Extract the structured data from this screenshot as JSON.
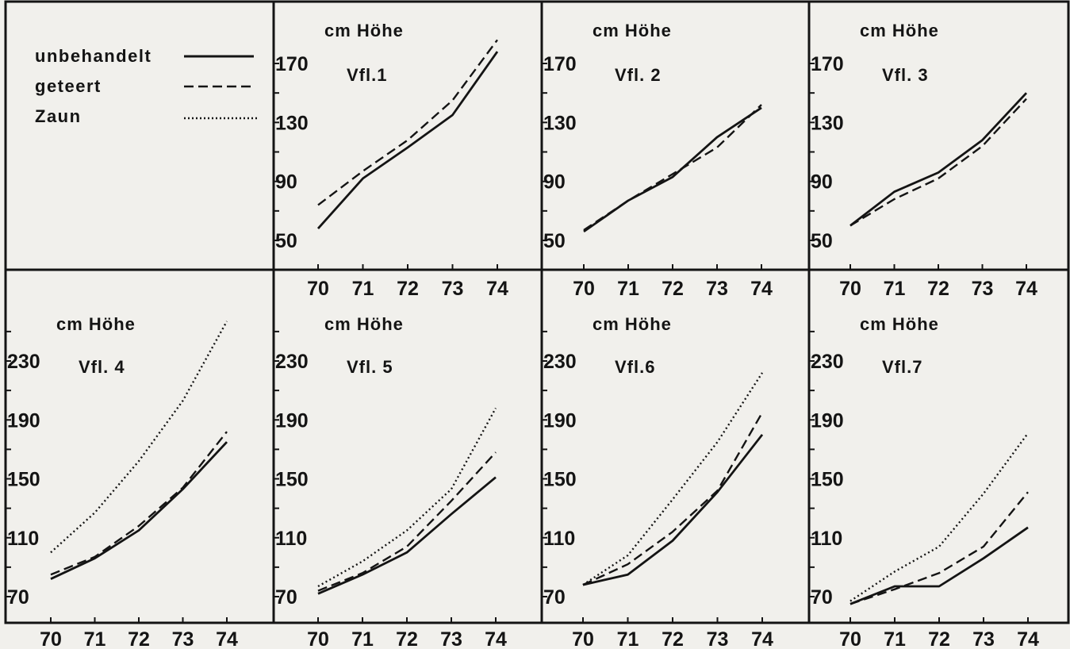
{
  "legend": {
    "entries": [
      {
        "label": "unbehandelt",
        "style": "solid"
      },
      {
        "label": "geteert",
        "style": "dashed"
      },
      {
        "label": "Zaun",
        "style": "dotted"
      }
    ]
  },
  "colors": {
    "ink": "#141414",
    "paper": "#f1f0ec"
  },
  "chart_data": [
    {
      "type": "line",
      "title": "Vfl.1",
      "ylabel": "cm Höhe",
      "categories": [
        "70",
        "71",
        "72",
        "73",
        "74"
      ],
      "ylim": [
        30,
        188
      ],
      "yticks": [
        50,
        90,
        130,
        170
      ],
      "series": [
        {
          "name": "unbehandelt",
          "style": "solid",
          "values": [
            58,
            92,
            113,
            135,
            178
          ]
        },
        {
          "name": "geteert",
          "style": "dashed",
          "values": [
            74,
            97,
            118,
            145,
            186
          ]
        }
      ]
    },
    {
      "type": "line",
      "title": "Vfl. 2",
      "ylabel": "cm Höhe",
      "categories": [
        "70",
        "71",
        "72",
        "73",
        "74"
      ],
      "ylim": [
        30,
        188
      ],
      "yticks": [
        50,
        90,
        130,
        170
      ],
      "series": [
        {
          "name": "unbehandelt",
          "style": "solid",
          "values": [
            56,
            77,
            93,
            120,
            140
          ]
        },
        {
          "name": "geteert",
          "style": "dashed",
          "values": [
            57,
            77,
            95,
            113,
            142
          ]
        }
      ]
    },
    {
      "type": "line",
      "title": "Vfl. 3",
      "ylabel": "cm Höhe",
      "categories": [
        "70",
        "71",
        "72",
        "73",
        "74"
      ],
      "ylim": [
        30,
        188
      ],
      "yticks": [
        50,
        90,
        130,
        170
      ],
      "series": [
        {
          "name": "unbehandelt",
          "style": "solid",
          "values": [
            60,
            83,
            96,
            118,
            150
          ]
        },
        {
          "name": "geteert",
          "style": "dashed",
          "values": [
            60,
            78,
            92,
            114,
            146
          ]
        }
      ]
    },
    {
      "type": "line",
      "title": "Vfl. 4",
      "ylabel": "cm Höhe",
      "categories": [
        "70",
        "71",
        "72",
        "73",
        "74"
      ],
      "ylim": [
        55,
        260
      ],
      "yticks": [
        70,
        110,
        150,
        190,
        230
      ],
      "series": [
        {
          "name": "unbehandelt",
          "style": "solid",
          "values": [
            82,
            96,
            115,
            143,
            175
          ]
        },
        {
          "name": "geteert",
          "style": "dashed",
          "values": [
            85,
            97,
            118,
            144,
            182
          ]
        },
        {
          "name": "Zaun",
          "style": "dotted",
          "values": [
            100,
            127,
            162,
            203,
            257
          ]
        }
      ]
    },
    {
      "type": "line",
      "title": "Vfl. 5",
      "ylabel": "cm Höhe",
      "categories": [
        "70",
        "71",
        "72",
        "73",
        "74"
      ],
      "ylim": [
        55,
        260
      ],
      "yticks": [
        70,
        110,
        150,
        190,
        230
      ],
      "series": [
        {
          "name": "unbehandelt",
          "style": "solid",
          "values": [
            72,
            85,
            100,
            126,
            151
          ]
        },
        {
          "name": "geteert",
          "style": "dashed",
          "values": [
            74,
            86,
            104,
            135,
            168
          ]
        },
        {
          "name": "Zaun",
          "style": "dotted",
          "values": [
            77,
            94,
            115,
            143,
            198
          ]
        }
      ]
    },
    {
      "type": "line",
      "title": "Vfl.6",
      "ylabel": "cm Höhe",
      "categories": [
        "70",
        "71",
        "72",
        "73",
        "74"
      ],
      "ylim": [
        55,
        260
      ],
      "yticks": [
        70,
        110,
        150,
        190,
        230
      ],
      "series": [
        {
          "name": "unbehandelt",
          "style": "solid",
          "values": [
            78,
            85,
            108,
            141,
            180
          ]
        },
        {
          "name": "geteert",
          "style": "dashed",
          "values": [
            78,
            92,
            114,
            142,
            195
          ]
        },
        {
          "name": "Zaun",
          "style": "dotted",
          "values": [
            78,
            98,
            136,
            175,
            222
          ]
        }
      ]
    },
    {
      "type": "line",
      "title": "Vfl.7",
      "ylabel": "cm Höhe",
      "categories": [
        "70",
        "71",
        "72",
        "73",
        "74"
      ],
      "ylim": [
        55,
        260
      ],
      "yticks": [
        70,
        110,
        150,
        190,
        230
      ],
      "series": [
        {
          "name": "unbehandelt",
          "style": "solid",
          "values": [
            65,
            77,
            77,
            96,
            117
          ]
        },
        {
          "name": "geteert",
          "style": "dashed",
          "values": [
            65,
            75,
            86,
            104,
            141
          ]
        },
        {
          "name": "Zaun",
          "style": "dotted",
          "values": [
            67,
            87,
            104,
            140,
            181
          ]
        }
      ]
    }
  ]
}
